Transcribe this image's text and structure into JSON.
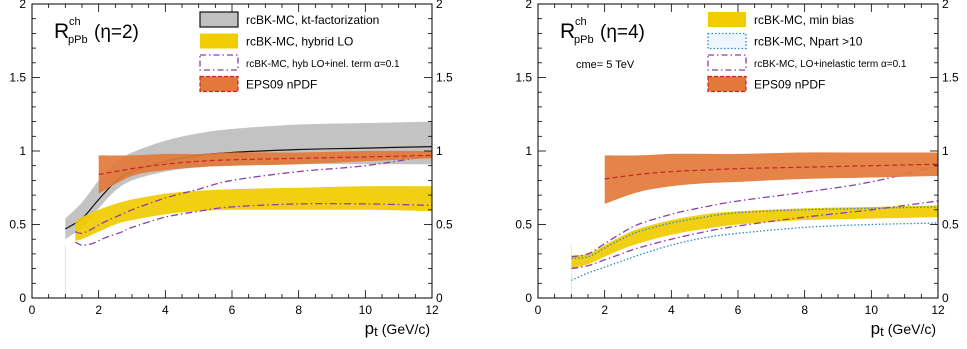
{
  "chart_data": [
    {
      "type": "line",
      "title": "R_pPb^ch(η=2)",
      "title_main": "R",
      "title_sup": "ch",
      "title_sub": "pPb",
      "title_arg": "(η=2)",
      "xlabel_main": "p",
      "xlabel_sub": "t",
      "xlabel_unit": "(GeV/c)",
      "ylabel": "",
      "xlim": [
        0,
        12
      ],
      "ylim": [
        0,
        2
      ],
      "x_ticks": [
        "0",
        "2",
        "4",
        "6",
        "8",
        "10",
        "12"
      ],
      "y_ticks_left": [
        "0",
        "0.5",
        "1",
        "1.5",
        "2"
      ],
      "y_ticks_right": [
        "0",
        "0.5",
        "1",
        "1.5",
        "2"
      ],
      "legend_position": "top-right",
      "annotation": "",
      "series": [
        {
          "name": "rcBK-MC, kt-factorization",
          "style": "band",
          "color": "#c0c0c0",
          "x": [
            1,
            1.5,
            2,
            2.5,
            3,
            4,
            5,
            6,
            8,
            10,
            12
          ],
          "upper": [
            0.54,
            0.65,
            0.8,
            0.92,
            0.99,
            1.07,
            1.12,
            1.15,
            1.18,
            1.19,
            1.2
          ],
          "lower": [
            0.4,
            0.48,
            0.61,
            0.73,
            0.8,
            0.86,
            0.89,
            0.9,
            0.91,
            0.91,
            0.91
          ],
          "central": [
            0.47,
            0.54,
            0.67,
            0.79,
            0.86,
            0.93,
            0.97,
            0.99,
            1.01,
            1.02,
            1.03
          ],
          "central_color": "#111111"
        },
        {
          "name": "rcBK-MC, hybrid LO",
          "style": "band",
          "color": "#f0cc00",
          "x": [
            1.3,
            1.5,
            2,
            2.5,
            3,
            4,
            5,
            6,
            8,
            10,
            12
          ],
          "upper": [
            0.52,
            0.55,
            0.6,
            0.64,
            0.67,
            0.71,
            0.73,
            0.74,
            0.75,
            0.76,
            0.76
          ],
          "lower": [
            0.39,
            0.4,
            0.45,
            0.5,
            0.53,
            0.57,
            0.59,
            0.6,
            0.6,
            0.6,
            0.59
          ]
        },
        {
          "name": "rcBK-MC, hyb LO+inel. term α=0.1",
          "style": "dash-dot",
          "color": "#8a3faa",
          "x": [
            1.3,
            1.5,
            1.8,
            2.2,
            2.7,
            3,
            4,
            5,
            6,
            8,
            10,
            12
          ],
          "lines": [
            [
              0.45,
              0.44,
              0.47,
              0.52,
              0.57,
              0.6,
              0.68,
              0.74,
              0.8,
              0.86,
              0.9,
              0.97
            ],
            [
              0.38,
              0.36,
              0.37,
              0.41,
              0.45,
              0.48,
              0.55,
              0.59,
              0.62,
              0.64,
              0.64,
              0.63
            ]
          ]
        },
        {
          "name": "EPS09 nPDF",
          "style": "band",
          "color": "#e2793a",
          "x": [
            2,
            3,
            4,
            5,
            6,
            8,
            10,
            12
          ],
          "upper": [
            0.97,
            0.97,
            0.98,
            0.98,
            0.99,
            0.99,
            1.0,
            1.0
          ],
          "lower": [
            0.71,
            0.83,
            0.87,
            0.89,
            0.9,
            0.91,
            0.93,
            0.95
          ],
          "central": [
            0.84,
            0.88,
            0.91,
            0.93,
            0.94,
            0.95,
            0.96,
            0.97
          ],
          "central_color": "#c8242a"
        }
      ]
    },
    {
      "type": "line",
      "title": "R_pPb^ch(η=4)",
      "title_main": "R",
      "title_sup": "ch",
      "title_sub": "pPb",
      "title_arg": "(η=4)",
      "xlabel_main": "p",
      "xlabel_sub": "t",
      "xlabel_unit": "(GeV/c)",
      "ylabel": "",
      "xlim": [
        0,
        12
      ],
      "ylim": [
        0,
        2
      ],
      "x_ticks": [
        "0",
        "2",
        "4",
        "6",
        "8",
        "10",
        "12"
      ],
      "y_ticks_left": [
        "0",
        "0.5",
        "1",
        "1.5",
        "2"
      ],
      "y_ticks_right": [
        "0",
        "0.5",
        "1",
        "1.5",
        "2"
      ],
      "legend_position": "top-right",
      "annotation": "cme= 5 TeV",
      "series": [
        {
          "name": "rcBK-MC, min bias",
          "style": "band",
          "color": "#f0cc00",
          "x": [
            1,
            1.5,
            2,
            2.5,
            3,
            4,
            5,
            6,
            8,
            10,
            12
          ],
          "upper": [
            0.29,
            0.3,
            0.36,
            0.42,
            0.47,
            0.53,
            0.57,
            0.59,
            0.61,
            0.62,
            0.63
          ],
          "lower": [
            0.2,
            0.23,
            0.28,
            0.33,
            0.37,
            0.43,
            0.47,
            0.5,
            0.53,
            0.54,
            0.55
          ]
        },
        {
          "name": "rcBK-MC, Npart >10",
          "style": "dotted",
          "color": "#2a8ac8",
          "x": [
            1,
            1.5,
            2,
            2.5,
            3,
            4,
            5,
            6,
            8,
            10,
            12
          ],
          "lines": [
            [
              0.27,
              0.28,
              0.34,
              0.4,
              0.45,
              0.51,
              0.55,
              0.58,
              0.6,
              0.61,
              0.62
            ],
            [
              0.12,
              0.17,
              0.21,
              0.25,
              0.29,
              0.36,
              0.41,
              0.44,
              0.48,
              0.5,
              0.51
            ]
          ]
        },
        {
          "name": "rcBK-MC, LO+inelastic term α=0.1",
          "style": "dash-dot",
          "color": "#8a3faa",
          "x": [
            1,
            1.5,
            2,
            2.5,
            3,
            4,
            5,
            6,
            8,
            10,
            12
          ],
          "lines": [
            [
              0.28,
              0.3,
              0.37,
              0.44,
              0.5,
              0.57,
              0.62,
              0.66,
              0.72,
              0.79,
              0.9
            ],
            [
              0.2,
              0.22,
              0.26,
              0.3,
              0.34,
              0.4,
              0.45,
              0.49,
              0.55,
              0.6,
              0.66
            ]
          ]
        },
        {
          "name": "EPS09 nPDF",
          "style": "band",
          "color": "#e2793a",
          "x": [
            2,
            3,
            4,
            5,
            6,
            8,
            10,
            12
          ],
          "upper": [
            0.97,
            0.97,
            0.98,
            0.98,
            0.98,
            0.99,
            0.99,
            0.99
          ],
          "lower": [
            0.64,
            0.72,
            0.76,
            0.78,
            0.79,
            0.81,
            0.82,
            0.83
          ],
          "central": [
            0.81,
            0.84,
            0.86,
            0.87,
            0.88,
            0.89,
            0.9,
            0.91
          ],
          "central_color": "#c8242a"
        }
      ]
    }
  ]
}
